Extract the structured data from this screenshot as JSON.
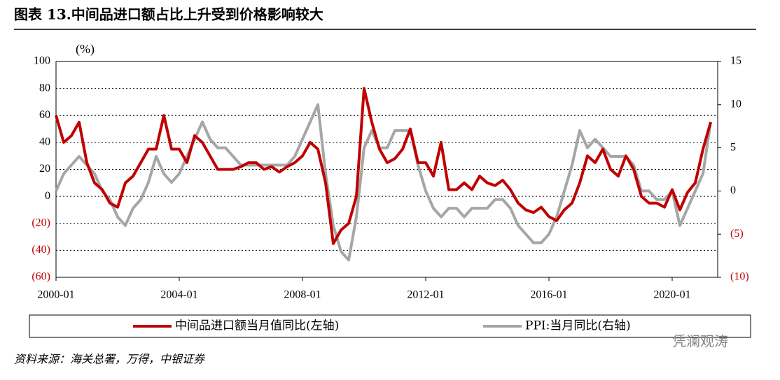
{
  "chart_data": {
    "type": "line",
    "title": "图表 13.中间品进口额占比上升受到价格影响较大",
    "y_unit": "(%)",
    "source": "资料来源：海关总署，万得，中银证券",
    "watermark": "凭澜观涛",
    "x": [
      "2000-01",
      "2000-04",
      "2000-07",
      "2000-10",
      "2001-01",
      "2001-04",
      "2001-07",
      "2001-10",
      "2002-01",
      "2002-04",
      "2002-07",
      "2002-10",
      "2003-01",
      "2003-04",
      "2003-07",
      "2003-10",
      "2004-01",
      "2004-04",
      "2004-07",
      "2004-10",
      "2005-01",
      "2005-04",
      "2005-07",
      "2005-10",
      "2006-01",
      "2006-04",
      "2006-07",
      "2006-10",
      "2007-01",
      "2007-04",
      "2007-07",
      "2007-10",
      "2008-01",
      "2008-04",
      "2008-07",
      "2008-10",
      "2009-01",
      "2009-04",
      "2009-07",
      "2009-10",
      "2010-01",
      "2010-04",
      "2010-07",
      "2010-10",
      "2011-01",
      "2011-04",
      "2011-07",
      "2011-10",
      "2012-01",
      "2012-04",
      "2012-07",
      "2012-10",
      "2013-01",
      "2013-04",
      "2013-07",
      "2013-10",
      "2014-01",
      "2014-04",
      "2014-07",
      "2014-10",
      "2015-01",
      "2015-04",
      "2015-07",
      "2015-10",
      "2016-01",
      "2016-04",
      "2016-07",
      "2016-10",
      "2017-01",
      "2017-04",
      "2017-07",
      "2017-10",
      "2018-01",
      "2018-04",
      "2018-07",
      "2018-10",
      "2019-01",
      "2019-04",
      "2019-07",
      "2019-10",
      "2020-01",
      "2020-04",
      "2020-07",
      "2020-10",
      "2021-01",
      "2021-04"
    ],
    "series": [
      {
        "name": "中间品进口额当月值同比(左轴)",
        "color": "#c00000",
        "axis": "y",
        "values": [
          60,
          40,
          45,
          55,
          25,
          10,
          5,
          -5,
          -8,
          10,
          15,
          25,
          35,
          35,
          60,
          35,
          35,
          25,
          45,
          40,
          30,
          20,
          20,
          20,
          22,
          25,
          25,
          20,
          22,
          18,
          22,
          25,
          30,
          40,
          35,
          10,
          -35,
          -25,
          -20,
          0,
          80,
          55,
          35,
          25,
          28,
          35,
          50,
          25,
          25,
          15,
          40,
          5,
          5,
          10,
          5,
          15,
          10,
          8,
          12,
          5,
          -5,
          -10,
          -12,
          -8,
          -15,
          -18,
          -10,
          -5,
          10,
          30,
          25,
          35,
          20,
          15,
          30,
          20,
          0,
          -5,
          -5,
          -8,
          5,
          -10,
          3,
          10,
          35,
          55
        ]
      },
      {
        "name": "PPI:当月同比(右轴)",
        "color": "#a6a6a6",
        "axis": "y2",
        "values": [
          0,
          2,
          3,
          4,
          3,
          2,
          0,
          -1,
          -3,
          -4,
          -2,
          -1,
          1,
          4,
          2,
          1,
          2,
          4,
          6,
          8,
          6,
          5,
          5,
          4,
          3,
          3,
          3,
          3,
          3,
          3,
          3,
          4,
          6,
          8,
          10,
          2,
          -4,
          -7,
          -8,
          -3,
          5,
          7,
          5,
          5,
          7,
          7,
          7,
          3,
          0,
          -2,
          -3,
          -2,
          -2,
          -3,
          -2,
          -2,
          -2,
          -1,
          -1,
          -2,
          -4,
          -5,
          -6,
          -6,
          -5,
          -3,
          0,
          3,
          7,
          5,
          6,
          5,
          4,
          4,
          4,
          3,
          0,
          0,
          -1,
          -1,
          0,
          -4,
          -2,
          0,
          2,
          8
        ]
      }
    ],
    "ylim": [
      -60,
      100
    ],
    "yticks": [
      {
        "value": -60,
        "label": "(60)"
      },
      {
        "value": -40,
        "label": "(40)"
      },
      {
        "value": -20,
        "label": "(20)"
      },
      0,
      20,
      40,
      60,
      80,
      100
    ],
    "y2lim": [
      -10,
      15
    ],
    "y2ticks": [
      {
        "value": -10,
        "label": "(10)"
      },
      {
        "value": -5,
        "label": "(5)"
      },
      0,
      5,
      10,
      15
    ],
    "grid": true,
    "negative_label_color": "#c00000"
  }
}
